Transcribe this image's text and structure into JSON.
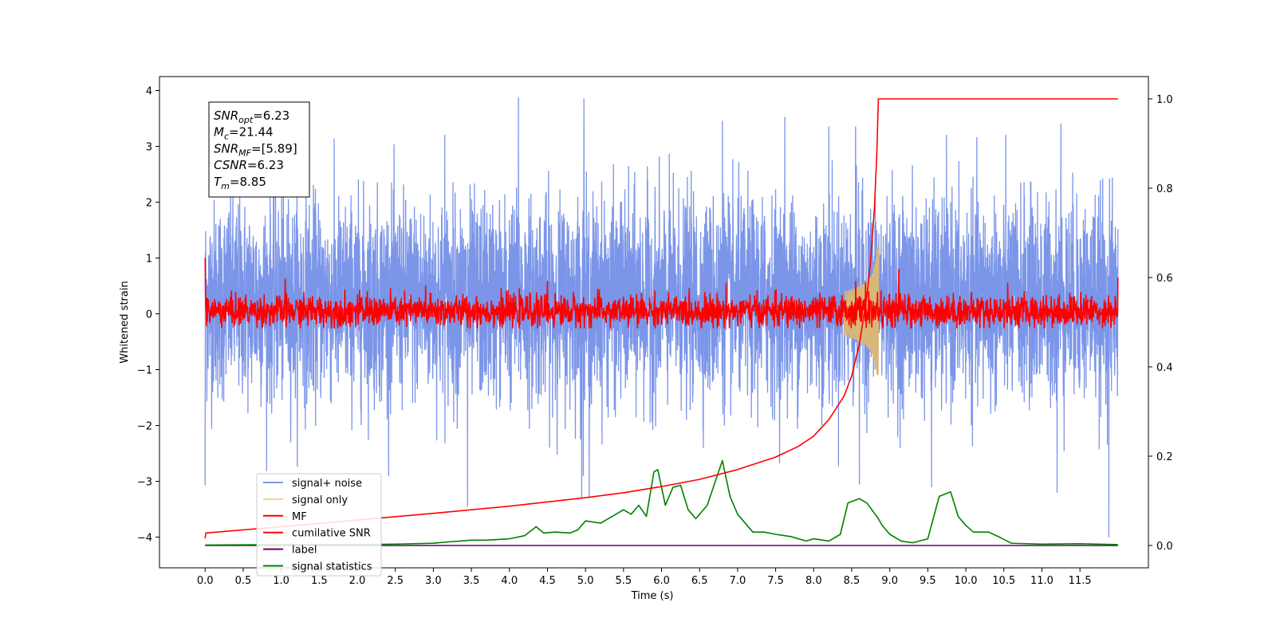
{
  "chart_data": {
    "type": "line",
    "xlabel": "Time (s)",
    "ylabel": "Whitened strain",
    "xlim": [
      -0.6,
      12.4
    ],
    "ylim": [
      -4.55,
      4.25
    ],
    "y2lim": [
      -0.05,
      1.05
    ],
    "x_ticks": [
      0.0,
      0.5,
      1.0,
      1.5,
      2.0,
      2.5,
      3.0,
      3.5,
      4.0,
      4.5,
      5.0,
      5.5,
      6.0,
      6.5,
      7.0,
      7.5,
      8.0,
      8.5,
      9.0,
      9.5,
      10.0,
      10.5,
      11.0,
      11.5
    ],
    "x_tick_labels": [
      "0.0",
      "0.5",
      "1.0",
      "1.5",
      "2.0",
      "2.5",
      "3.0",
      "3.5",
      "4.0",
      "4.5",
      "5.0",
      "5.5",
      "6.0",
      "6.5",
      "7.0",
      "7.5",
      "8.0",
      "8.5",
      "9.0",
      "9.5",
      "10.0",
      "10.5",
      "11.0",
      "11.5"
    ],
    "y_ticks": [
      -4,
      -3,
      -2,
      -1,
      0,
      1,
      2,
      3,
      4
    ],
    "y_tick_labels": [
      "−4",
      "−3",
      "−2",
      "−1",
      "0",
      "1",
      "2",
      "3",
      "4"
    ],
    "y2_ticks": [
      0.0,
      0.2,
      0.4,
      0.6,
      0.8,
      1.0
    ],
    "y2_tick_labels": [
      "0.0",
      "0.2",
      "0.4",
      "0.6",
      "0.8",
      "1.0"
    ],
    "legend": {
      "position": "lower-left",
      "entries": [
        {
          "label": "signal+ noise",
          "color": "#7b95e8"
        },
        {
          "label": "signal only",
          "color": "#f5d38a"
        },
        {
          "label": "MF",
          "color": "#ff0000"
        },
        {
          "label": "cumilative SNR",
          "color": "#ff0000"
        },
        {
          "label": "label",
          "color": "#6b006b"
        },
        {
          "label": "signal statistics",
          "color": "#008000"
        }
      ]
    },
    "stats_box": {
      "lines": [
        {
          "main": "SNR",
          "sub": "opt",
          "value": "=6.23"
        },
        {
          "main": "M",
          "sub": "c",
          "value": "=21.44"
        },
        {
          "main": "SNR",
          "sub": "MF",
          "value": "=[5.89]"
        },
        {
          "main": "CSNR",
          "sub": "",
          "value": "=6.23"
        },
        {
          "main": "T",
          "sub": "m",
          "value": "=8.85"
        }
      ]
    },
    "series": [
      {
        "name": "signal+ noise",
        "axis": "left",
        "color": "#7b95e8",
        "x_range": [
          0.0,
          12.0
        ],
        "typical_range": [
          -1.8,
          2.3
        ],
        "peaks": [
          [
            4.12,
            3.87
          ],
          [
            4.98,
            3.85
          ],
          [
            7.62,
            3.52
          ],
          [
            8.55,
            3.35
          ],
          [
            11.25,
            3.4
          ],
          [
            3.15,
            3.2
          ],
          [
            6.8,
            3.45
          ],
          [
            8.2,
            3.35
          ]
        ],
        "troughs": [
          [
            0.0,
            -3.07
          ],
          [
            3.45,
            -3.45
          ],
          [
            4.95,
            -3.3
          ],
          [
            5.05,
            -3.3
          ],
          [
            11.2,
            -3.2
          ],
          [
            11.88,
            -4.0
          ],
          [
            8.6,
            -3.05
          ],
          [
            9.55,
            -3.1
          ]
        ]
      },
      {
        "name": "signal only",
        "axis": "left",
        "color": "#f5d38a",
        "x_range": [
          8.4,
          8.88
        ],
        "peak_amplitude": 1.2,
        "merger_time": 8.85
      },
      {
        "name": "MF",
        "axis": "left",
        "color": "#ff0000",
        "x_range": [
          0.0,
          12.0
        ],
        "typical_range": [
          -0.25,
          0.45
        ],
        "start_value": 1.0,
        "end_value": 0.65
      },
      {
        "name": "cumilative SNR",
        "axis": "right",
        "color": "#ff0000",
        "x": [
          0.0,
          0.01,
          1.0,
          2.0,
          3.0,
          4.0,
          5.0,
          5.5,
          6.0,
          6.5,
          7.0,
          7.5,
          7.8,
          8.0,
          8.2,
          8.4,
          8.5,
          8.6,
          8.7,
          8.75,
          8.8,
          8.83,
          8.85,
          12.0
        ],
        "values": [
          0.016,
          0.028,
          0.042,
          0.057,
          0.072,
          0.088,
          0.107,
          0.118,
          0.132,
          0.148,
          0.17,
          0.198,
          0.222,
          0.245,
          0.282,
          0.335,
          0.38,
          0.45,
          0.56,
          0.64,
          0.76,
          0.88,
          1.0,
          1.0
        ]
      },
      {
        "name": "label",
        "axis": "right",
        "color": "#6b006b",
        "x": [
          0.0,
          12.0
        ],
        "values": [
          0.0,
          0.0
        ]
      },
      {
        "name": "signal statistics",
        "axis": "right",
        "color": "#008000",
        "x": [
          0.0,
          1.0,
          2.0,
          2.5,
          3.0,
          3.2,
          3.5,
          3.7,
          4.0,
          4.2,
          4.3,
          4.35,
          4.45,
          4.6,
          4.8,
          4.9,
          5.0,
          5.2,
          5.4,
          5.5,
          5.6,
          5.7,
          5.8,
          5.9,
          5.95,
          6.05,
          6.15,
          6.25,
          6.35,
          6.45,
          6.6,
          6.8,
          6.9,
          7.0,
          7.2,
          7.35,
          7.5,
          7.7,
          7.9,
          8.0,
          8.2,
          8.35,
          8.45,
          8.6,
          8.7,
          8.85,
          8.9,
          9.0,
          9.15,
          9.3,
          9.5,
          9.65,
          9.8,
          9.9,
          10.0,
          10.1,
          10.3,
          10.45,
          10.6,
          11.0,
          11.5,
          12.0
        ],
        "values": [
          0.001,
          0.002,
          0.002,
          0.003,
          0.005,
          0.008,
          0.012,
          0.012,
          0.015,
          0.022,
          0.035,
          0.042,
          0.028,
          0.03,
          0.028,
          0.035,
          0.055,
          0.05,
          0.07,
          0.08,
          0.07,
          0.09,
          0.065,
          0.165,
          0.17,
          0.09,
          0.13,
          0.135,
          0.08,
          0.06,
          0.09,
          0.19,
          0.11,
          0.07,
          0.03,
          0.03,
          0.025,
          0.02,
          0.01,
          0.015,
          0.01,
          0.025,
          0.095,
          0.105,
          0.095,
          0.06,
          0.045,
          0.025,
          0.01,
          0.006,
          0.015,
          0.11,
          0.12,
          0.065,
          0.045,
          0.03,
          0.03,
          0.018,
          0.005,
          0.003,
          0.004,
          0.002
        ]
      }
    ]
  }
}
